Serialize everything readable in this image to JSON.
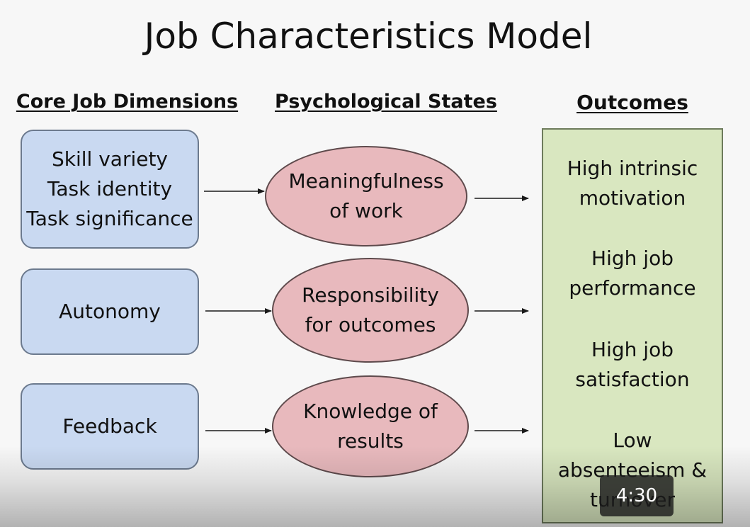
{
  "title": "Job Characteristics Model",
  "headers": {
    "core": "Core Job Dimensions",
    "psych": "Psychological States",
    "outcomes": "Outcomes"
  },
  "dimensions": [
    {
      "lines": [
        "Skill variety",
        "Task identity",
        "Task significance"
      ]
    },
    {
      "lines": [
        "Autonomy"
      ]
    },
    {
      "lines": [
        "Feedback"
      ]
    }
  ],
  "states": [
    {
      "lines": [
        "Meaningfulness",
        "of work"
      ]
    },
    {
      "lines": [
        "Responsibility",
        "for outcomes"
      ]
    },
    {
      "lines": [
        "Knowledge of",
        "results"
      ]
    }
  ],
  "outcomes": [
    {
      "lines": [
        "High intrinsic",
        "motivation"
      ]
    },
    {
      "lines": [
        "High job",
        "performance"
      ]
    },
    {
      "lines": [
        "High job",
        "satisfaction"
      ]
    },
    {
      "lines": [
        "Low",
        "absenteeism &",
        "turnover"
      ]
    }
  ],
  "video": {
    "timestamp": "4:30"
  }
}
